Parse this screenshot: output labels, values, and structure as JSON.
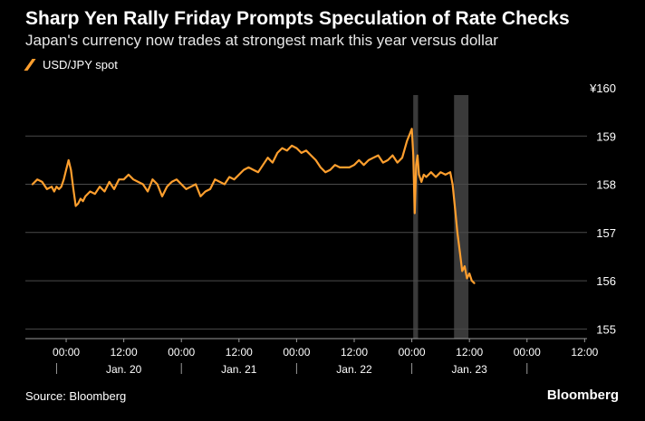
{
  "title": "Sharp Yen Rally Friday Prompts Speculation of Rate Checks",
  "subtitle": "Japan's currency now trades at strongest mark this year versus dollar",
  "legend": {
    "label": "USD/JPY spot"
  },
  "source": "Source: Bloomberg",
  "brand": "Bloomberg",
  "colors": {
    "line": "#ff9f2e",
    "grid": "#4a4a4a",
    "shade": "#3a3a3a",
    "text": "#ffffff"
  },
  "chart_data": {
    "type": "line",
    "title": "Sharp Yen Rally Friday Prompts Speculation of Rate Checks",
    "xlabel": "",
    "ylabel": "",
    "ylim": [
      154.8,
      160
    ],
    "xlim": [
      -8.5,
      108.5
    ],
    "x_units": "hours since 00:00 Jan. 20",
    "y_ticks": [
      {
        "value": 160,
        "label": "¥160"
      },
      {
        "value": 159,
        "label": "159"
      },
      {
        "value": 158,
        "label": "158"
      },
      {
        "value": 157,
        "label": "157"
      },
      {
        "value": 156,
        "label": "156"
      },
      {
        "value": 155,
        "label": "155"
      }
    ],
    "x_ticks": [
      {
        "value": 0,
        "label": "00:00"
      },
      {
        "value": 12,
        "label": "12:00"
      },
      {
        "value": 24,
        "label": "00:00"
      },
      {
        "value": 36,
        "label": "12:00"
      },
      {
        "value": 48,
        "label": "00:00"
      },
      {
        "value": 60,
        "label": "12:00"
      },
      {
        "value": 72,
        "label": "00:00"
      },
      {
        "value": 84,
        "label": "12:00"
      },
      {
        "value": 96,
        "label": "00:00"
      },
      {
        "value": 108,
        "label": "12:00"
      }
    ],
    "day_labels": [
      {
        "center": 12,
        "label": "Jan. 20"
      },
      {
        "center": 36,
        "label": "Jan. 21"
      },
      {
        "center": 60,
        "label": "Jan. 22"
      },
      {
        "center": 84,
        "label": "Jan. 23"
      }
    ],
    "day_separators": [
      -2,
      24,
      48,
      72,
      96
    ],
    "shaded_ranges": [
      [
        72.3,
        73.3
      ],
      [
        80.8,
        83.8
      ]
    ],
    "series": [
      {
        "name": "USD/JPY spot",
        "x": [
          -7,
          -6,
          -5,
          -4,
          -3,
          -2.5,
          -2,
          -1.5,
          -1,
          -0.5,
          0,
          0.5,
          1,
          1.5,
          2,
          2.5,
          3,
          3.5,
          4,
          5,
          6,
          7,
          8,
          9,
          10,
          11,
          12,
          13,
          14,
          15,
          16,
          17,
          18,
          19,
          20,
          21,
          22,
          23,
          24,
          25,
          26,
          27,
          28,
          29,
          30,
          31,
          32,
          33,
          34,
          35,
          36,
          37,
          38,
          39,
          40,
          41,
          42,
          43,
          44,
          45,
          46,
          47,
          48,
          49,
          50,
          51,
          52,
          53,
          54,
          55,
          56,
          57,
          58,
          59,
          60,
          61,
          62,
          63,
          64,
          65,
          66,
          67,
          68,
          69,
          70,
          71,
          72,
          72.3,
          72.6,
          72.9,
          73.2,
          73.5,
          74,
          74.5,
          75,
          76,
          77,
          78,
          79,
          80,
          80.5,
          81,
          81.5,
          82,
          82.5,
          83,
          83.5,
          84,
          84.5,
          85
        ],
        "y": [
          158.0,
          158.1,
          158.05,
          157.9,
          157.95,
          157.85,
          157.95,
          157.9,
          157.95,
          158.1,
          158.3,
          158.5,
          158.3,
          157.9,
          157.55,
          157.6,
          157.7,
          157.65,
          157.75,
          157.85,
          157.8,
          157.95,
          157.85,
          158.05,
          157.9,
          158.1,
          158.1,
          158.2,
          158.1,
          158.05,
          158.0,
          157.85,
          158.1,
          158.0,
          157.75,
          157.95,
          158.05,
          158.1,
          158.0,
          157.9,
          157.95,
          158.0,
          157.75,
          157.85,
          157.9,
          158.1,
          158.05,
          158.0,
          158.15,
          158.1,
          158.2,
          158.3,
          158.35,
          158.3,
          158.25,
          158.4,
          158.55,
          158.45,
          158.65,
          158.75,
          158.7,
          158.8,
          158.75,
          158.65,
          158.7,
          158.6,
          158.5,
          158.35,
          158.25,
          158.3,
          158.4,
          158.35,
          158.35,
          158.35,
          158.4,
          158.5,
          158.4,
          158.5,
          158.55,
          158.6,
          158.45,
          158.5,
          158.6,
          158.45,
          158.55,
          158.9,
          159.15,
          158.6,
          157.4,
          158.4,
          158.6,
          158.2,
          158.05,
          158.2,
          158.15,
          158.25,
          158.15,
          158.25,
          158.2,
          158.25,
          158.0,
          157.5,
          157.0,
          156.6,
          156.2,
          156.3,
          156.05,
          156.15,
          156.0,
          155.95
        ]
      }
    ]
  }
}
